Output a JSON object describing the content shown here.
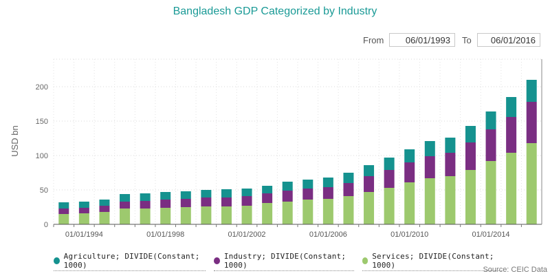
{
  "chart_data": {
    "type": "bar",
    "stacked": true,
    "title": "Bangladesh GDP Categorized by Industry",
    "ylabel": "USD bn",
    "xlabel": "",
    "ylim": [
      0,
      240
    ],
    "yticks": [
      0,
      50,
      100,
      150,
      200
    ],
    "grid": true,
    "legend_position": "bottom",
    "categories": [
      "1993",
      "1994",
      "1995",
      "1996",
      "1997",
      "1998",
      "1999",
      "2000",
      "2001",
      "2002",
      "2003",
      "2004",
      "2005",
      "2006",
      "2007",
      "2008",
      "2009",
      "2010",
      "2011",
      "2012",
      "2013",
      "2014",
      "2015",
      "2016"
    ],
    "xtick_labels": [
      {
        "category": "1994",
        "label": "01/01/1994"
      },
      {
        "category": "1998",
        "label": "01/01/1998"
      },
      {
        "category": "2002",
        "label": "01/01/2002"
      },
      {
        "category": "2006",
        "label": "01/01/2006"
      },
      {
        "category": "2010",
        "label": "01/01/2010"
      },
      {
        "category": "2014",
        "label": "01/01/2014"
      }
    ],
    "series": [
      {
        "name": "Services; DIVIDE(Constant; 1000)",
        "color": "#9dc96e",
        "values": [
          15,
          16,
          18,
          23,
          23,
          24,
          25,
          26,
          26,
          27,
          31,
          33,
          36,
          37,
          41,
          47,
          53,
          61,
          67,
          70,
          79,
          92,
          104,
          118
        ]
      },
      {
        "name": "Industry; DIVIDE(Constant; 1000)",
        "color": "#7a2e82",
        "values": [
          8,
          8,
          9,
          10,
          11,
          12,
          12,
          13,
          13,
          14,
          14,
          16,
          16,
          17,
          19,
          23,
          26,
          29,
          32,
          34,
          40,
          46,
          52,
          60
        ]
      },
      {
        "name": "Agriculture; DIVIDE(Constant; 1000)",
        "color": "#15928f",
        "values": [
          9,
          9,
          9,
          11,
          11,
          11,
          11,
          11,
          12,
          11,
          11,
          13,
          13,
          14,
          15,
          16,
          18,
          19,
          22,
          22,
          24,
          26,
          29,
          32
        ]
      }
    ]
  },
  "controls": {
    "from_label": "From",
    "from_value": "06/01/1993",
    "to_label": "To",
    "to_value": "06/01/2016"
  },
  "legend": [
    {
      "label": "Agriculture; DIVIDE(Constant; 1000)",
      "color": "#15928f"
    },
    {
      "label": "Industry; DIVIDE(Constant; 1000)",
      "color": "#7a2e82"
    },
    {
      "label": "Services; DIVIDE(Constant; 1000)",
      "color": "#9dc96e"
    }
  ],
  "source": "Source: CEIC Data"
}
